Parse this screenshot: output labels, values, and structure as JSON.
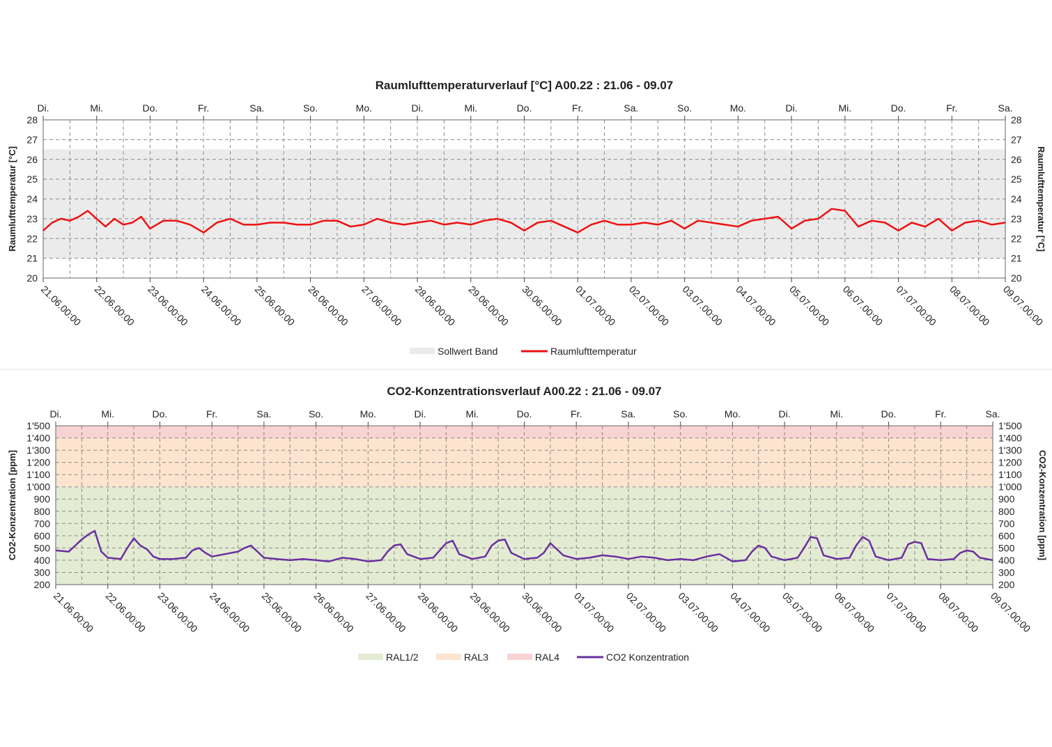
{
  "chart_data": [
    {
      "type": "line",
      "title": "Raumlufttemperaturverlauf [°C] A00.22 : 21.06 - 09.07",
      "ylabel_left": "Raumlufttemperatur [°C]",
      "ylabel_right": "Raumlufttemperatur [°C]",
      "ylim": [
        20,
        28
      ],
      "yticks": [
        "20",
        "21",
        "22",
        "23",
        "24",
        "25",
        "26",
        "27",
        "28"
      ],
      "x_start": "21.06.00:00",
      "x_end": "09.07.00:00",
      "xticks": [
        "21.06.00:00",
        "22.06.00:00",
        "23.06.00:00",
        "24.06.00:00",
        "25.06.00:00",
        "26.06.00:00",
        "27.06.00:00",
        "28.06.00:00",
        "29.06.00:00",
        "30.06.00:00",
        "01.07.00:00",
        "02.07.00:00",
        "03.07.00:00",
        "04.07.00:00",
        "05.07.00:00",
        "06.07.00:00",
        "07.07.00:00",
        "08.07.00:00",
        "09.07.00:00"
      ],
      "weekdays": [
        "Di.",
        "Mi.",
        "Do.",
        "Fr.",
        "Sa.",
        "So.",
        "Mo.",
        "Di.",
        "Mi.",
        "Do.",
        "Fr.",
        "Sa.",
        "So.",
        "Mo.",
        "Di.",
        "Mi.",
        "Do.",
        "Fr.",
        "Sa."
      ],
      "grid": true,
      "legend_position": "bottom",
      "bands": [
        {
          "name": "Sollwert Band",
          "from": 21,
          "to": 26.5,
          "color": "#ebebeb"
        }
      ],
      "series": [
        {
          "name": "Raumlufttemperatur",
          "color": "#ee1111",
          "x": [
            "21.06 00:00",
            "21.06 04:00",
            "21.06 08:00",
            "21.06 12:00",
            "21.06 16:00",
            "21.06 20:00",
            "22.06 00:00",
            "22.06 04:00",
            "22.06 08:00",
            "22.06 12:00",
            "22.06 16:00",
            "22.06 20:00",
            "23.06 00:00",
            "23.06 06:00",
            "23.06 12:00",
            "23.06 18:00",
            "24.06 00:00",
            "24.06 06:00",
            "24.06 12:00",
            "24.06 18:00",
            "25.06 00:00",
            "25.06 06:00",
            "25.06 12:00",
            "25.06 18:00",
            "26.06 00:00",
            "26.06 06:00",
            "26.06 12:00",
            "26.06 18:00",
            "27.06 00:00",
            "27.06 06:00",
            "27.06 12:00",
            "27.06 18:00",
            "28.06 00:00",
            "28.06 06:00",
            "28.06 12:00",
            "28.06 18:00",
            "29.06 00:00",
            "29.06 06:00",
            "29.06 12:00",
            "29.06 18:00",
            "30.06 00:00",
            "30.06 06:00",
            "30.06 12:00",
            "30.06 18:00",
            "01.07 00:00",
            "01.07 06:00",
            "01.07 12:00",
            "01.07 18:00",
            "02.07 00:00",
            "02.07 06:00",
            "02.07 12:00",
            "02.07 18:00",
            "03.07 00:00",
            "03.07 06:00",
            "03.07 12:00",
            "03.07 18:00",
            "04.07 00:00",
            "04.07 06:00",
            "04.07 12:00",
            "04.07 18:00",
            "05.07 00:00",
            "05.07 06:00",
            "05.07 12:00",
            "05.07 18:00",
            "06.07 00:00",
            "06.07 06:00",
            "06.07 12:00",
            "06.07 18:00",
            "07.07 00:00",
            "07.07 06:00",
            "07.07 12:00",
            "07.07 18:00",
            "08.07 00:00",
            "08.07 06:00",
            "08.07 12:00",
            "08.07 18:00",
            "09.07 00:00"
          ],
          "values": [
            22.4,
            22.8,
            23.0,
            22.9,
            23.1,
            23.4,
            23.0,
            22.6,
            23.0,
            22.7,
            22.8,
            23.1,
            22.5,
            22.9,
            22.9,
            22.7,
            22.3,
            22.8,
            23.0,
            22.7,
            22.7,
            22.8,
            22.8,
            22.7,
            22.7,
            22.9,
            22.9,
            22.6,
            22.7,
            23.0,
            22.8,
            22.7,
            22.8,
            22.9,
            22.7,
            22.8,
            22.7,
            22.9,
            23.0,
            22.8,
            22.4,
            22.8,
            22.9,
            22.6,
            22.3,
            22.7,
            22.9,
            22.7,
            22.7,
            22.8,
            22.7,
            22.9,
            22.5,
            22.9,
            22.8,
            22.7,
            22.6,
            22.9,
            23.0,
            23.1,
            22.5,
            22.9,
            23.0,
            23.5,
            23.4,
            22.6,
            22.9,
            22.8,
            22.4,
            22.8,
            22.6,
            23.0,
            22.4,
            22.8,
            22.9,
            22.7,
            22.8
          ]
        }
      ]
    },
    {
      "type": "line",
      "title": "CO2-Konzentrationsverlauf A00.22 : 21.06 - 09.07",
      "ylabel_left": "CO2-Konzentration [ppm]",
      "ylabel_right": "CO2-Konzentration [ppm]",
      "ylim": [
        200,
        1500
      ],
      "yticks": [
        "200",
        "300",
        "400",
        "500",
        "600",
        "700",
        "800",
        "900",
        "1'000",
        "1'100",
        "1'200",
        "1'300",
        "1'400",
        "1'500"
      ],
      "x_start": "21.06.00:00",
      "x_end": "09.07.00:00",
      "xticks": [
        "21.06.00:00",
        "22.06.00:00",
        "23.06.00:00",
        "24.06.00:00",
        "25.06.00:00",
        "26.06.00:00",
        "27.06.00:00",
        "28.06.00:00",
        "29.06.00:00",
        "30.06.00:00",
        "01.07.00:00",
        "02.07.00:00",
        "03.07.00:00",
        "04.07.00:00",
        "05.07.00:00",
        "06.07.00:00",
        "07.07.00:00",
        "08.07.00:00",
        "09.07.00:00"
      ],
      "weekdays": [
        "Di.",
        "Mi.",
        "Do.",
        "Fr.",
        "Sa.",
        "So.",
        "Mo.",
        "Di.",
        "Mi.",
        "Do.",
        "Fr.",
        "Sa.",
        "So.",
        "Mo.",
        "Di.",
        "Mi.",
        "Do.",
        "Fr.",
        "Sa."
      ],
      "grid": true,
      "legend_position": "bottom",
      "bands": [
        {
          "name": "RAL1/2",
          "from": 200,
          "to": 1000,
          "color": "#e3ecd2"
        },
        {
          "name": "RAL3",
          "from": 1000,
          "to": 1400,
          "color": "#fce4cf"
        },
        {
          "name": "RAL4",
          "from": 1400,
          "to": 1500,
          "color": "#f8d3d3"
        }
      ],
      "series": [
        {
          "name": "CO2 Konzentration",
          "color": "#6a2fa0",
          "x": [
            "21.06 00:00",
            "21.06 06:00",
            "21.06 09:00",
            "21.06 12:00",
            "21.06 15:00",
            "21.06 18:00",
            "21.06 21:00",
            "22.06 00:00",
            "22.06 06:00",
            "22.06 09:00",
            "22.06 12:00",
            "22.06 15:00",
            "22.06 18:00",
            "22.06 21:00",
            "23.06 00:00",
            "23.06 06:00",
            "23.06 12:00",
            "23.06 15:00",
            "23.06 18:00",
            "23.06 21:00",
            "24.06 00:00",
            "24.06 06:00",
            "24.06 12:00",
            "24.06 15:00",
            "24.06 18:00",
            "24.06 21:00",
            "25.06 00:00",
            "25.06 06:00",
            "25.06 12:00",
            "25.06 18:00",
            "26.06 00:00",
            "26.06 06:00",
            "26.06 12:00",
            "26.06 18:00",
            "27.06 00:00",
            "27.06 06:00",
            "27.06 09:00",
            "27.06 12:00",
            "27.06 15:00",
            "27.06 18:00",
            "28.06 00:00",
            "28.06 06:00",
            "28.06 09:00",
            "28.06 12:00",
            "28.06 15:00",
            "28.06 18:00",
            "29.06 00:00",
            "29.06 06:00",
            "29.06 09:00",
            "29.06 12:00",
            "29.06 15:00",
            "29.06 18:00",
            "30.06 00:00",
            "30.06 06:00",
            "30.06 09:00",
            "30.06 12:00",
            "30.06 18:00",
            "01.07 00:00",
            "01.07 06:00",
            "01.07 12:00",
            "01.07 18:00",
            "02.07 00:00",
            "02.07 06:00",
            "02.07 12:00",
            "02.07 18:00",
            "03.07 00:00",
            "03.07 06:00",
            "03.07 12:00",
            "03.07 18:00",
            "04.07 00:00",
            "04.07 06:00",
            "04.07 09:00",
            "04.07 12:00",
            "04.07 15:00",
            "04.07 18:00",
            "05.07 00:00",
            "05.07 06:00",
            "05.07 09:00",
            "05.07 12:00",
            "05.07 15:00",
            "05.07 18:00",
            "06.07 00:00",
            "06.07 06:00",
            "06.07 09:00",
            "06.07 12:00",
            "06.07 15:00",
            "06.07 18:00",
            "07.07 00:00",
            "07.07 06:00",
            "07.07 09:00",
            "07.07 12:00",
            "07.07 15:00",
            "07.07 18:00",
            "08.07 00:00",
            "08.07 06:00",
            "08.07 09:00",
            "08.07 12:00",
            "08.07 15:00",
            "08.07 18:00",
            "09.07 00:00"
          ],
          "values": [
            480,
            470,
            520,
            570,
            610,
            640,
            470,
            420,
            410,
            500,
            580,
            520,
            490,
            430,
            410,
            410,
            420,
            480,
            500,
            460,
            430,
            450,
            470,
            500,
            520,
            470,
            420,
            410,
            400,
            410,
            400,
            390,
            420,
            410,
            390,
            400,
            470,
            520,
            530,
            450,
            410,
            420,
            480,
            540,
            560,
            450,
            410,
            430,
            520,
            560,
            570,
            460,
            410,
            420,
            460,
            540,
            440,
            410,
            420,
            440,
            430,
            410,
            430,
            420,
            400,
            410,
            400,
            430,
            450,
            390,
            400,
            470,
            520,
            500,
            430,
            400,
            420,
            500,
            590,
            580,
            440,
            410,
            420,
            520,
            590,
            560,
            430,
            400,
            420,
            530,
            550,
            540,
            410,
            400,
            410,
            460,
            480,
            470,
            420,
            400
          ]
        }
      ]
    }
  ]
}
